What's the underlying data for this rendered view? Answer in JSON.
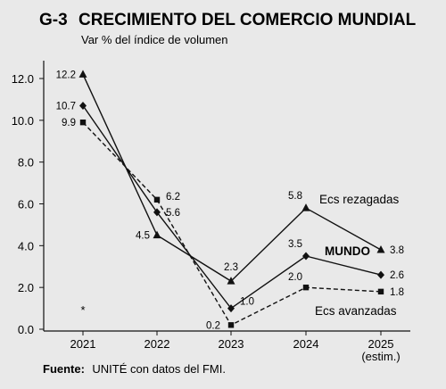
{
  "header": {
    "code": "G-3",
    "title": "CRECIMIENTO DEL COMERCIO MUNDIAL",
    "subtitle": "Var % del índice de volumen"
  },
  "footer": {
    "source_label": "Fuente:",
    "source_text": "UNITÉ con datos del FMI."
  },
  "chart_data": {
    "type": "line",
    "title": "CRECIMIENTO DEL COMERCIO MUNDIAL",
    "subtitle": "Var % del índice de volumen",
    "categories": [
      "2021",
      "2022",
      "2023",
      "2024",
      "2025"
    ],
    "category_sublabels": [
      "",
      "",
      "",
      "",
      "(estim.)"
    ],
    "ylim": [
      0,
      12
    ],
    "yticks": [
      "0.0",
      "2.0",
      "4.0",
      "6.0",
      "8.0",
      "10.0",
      "12.0"
    ],
    "grid": false,
    "asterisk": "*",
    "series": [
      {
        "name": "Ecs rezagadas",
        "values": [
          12.2,
          4.5,
          2.3,
          5.8,
          3.8
        ],
        "labels": [
          "12.2",
          "4.5",
          "2.3",
          "5.8",
          "3.8"
        ],
        "marker": "triangle",
        "dash": "solid"
      },
      {
        "name": "MUNDO",
        "values": [
          10.7,
          5.6,
          1.0,
          3.5,
          2.6
        ],
        "labels": [
          "10.7",
          "5.6",
          "1.0",
          "3.5",
          "2.6"
        ],
        "marker": "diamond",
        "dash": "solid"
      },
      {
        "name": "Ecs avanzadas",
        "values": [
          9.9,
          6.2,
          0.2,
          2.0,
          1.8
        ],
        "labels": [
          "9.9",
          "6.2",
          "0.2",
          "2.0",
          "1.8"
        ],
        "marker": "square",
        "dash": "dashed"
      }
    ],
    "colors": {
      "line": "#111111",
      "background": "#e9e9e9"
    }
  }
}
